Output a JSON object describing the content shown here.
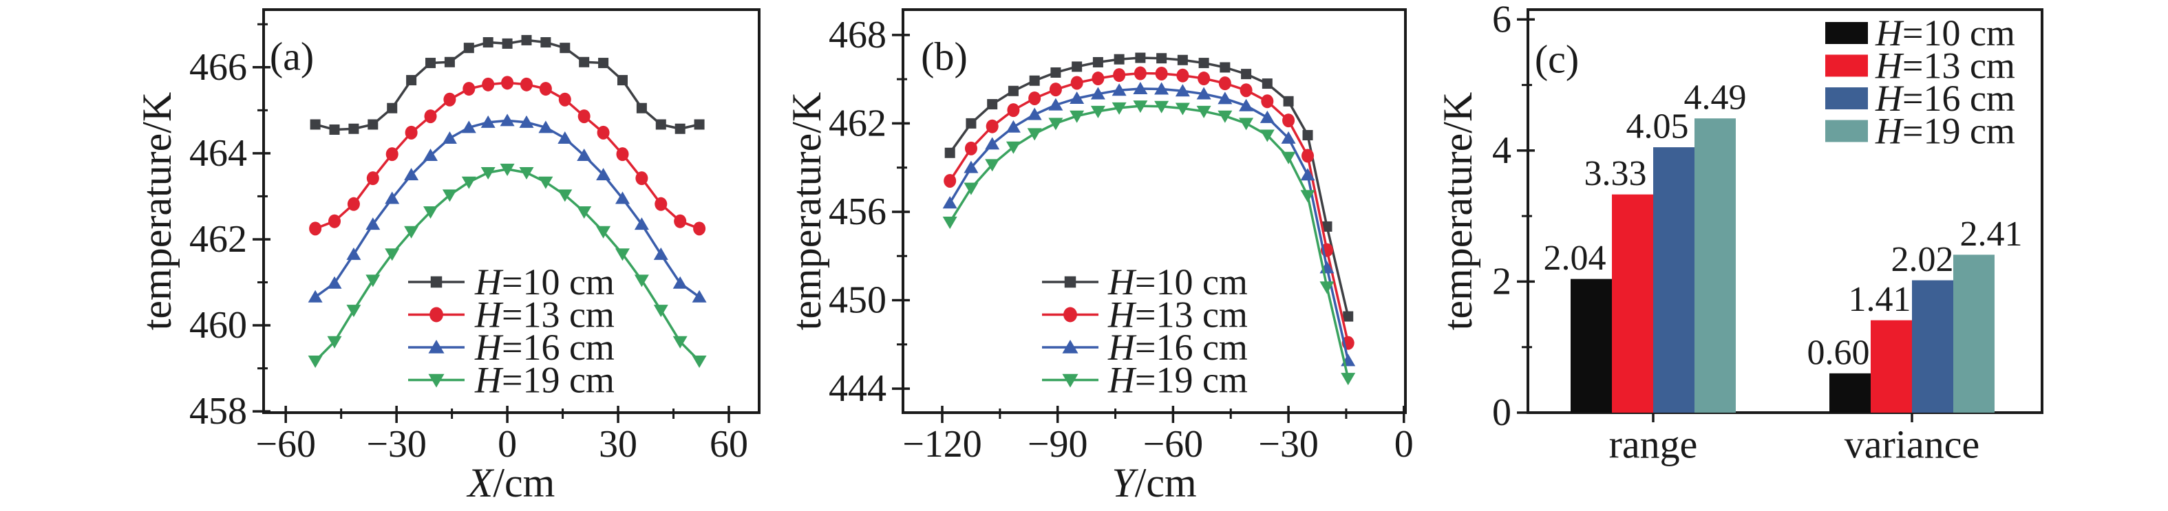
{
  "figure": {
    "background": "#ffffff",
    "text_color": "#1a1a1a",
    "spine_color": "#1a1a1a"
  },
  "chart_data": [
    {
      "type": "line",
      "panel_label": "(a)",
      "xlabel": "X/cm",
      "ylabel": "temperature/K",
      "xlim": [
        -66,
        68.2
      ],
      "ylim": [
        457.97,
        467.34
      ],
      "xticks": [
        -60,
        -30,
        0,
        30,
        60
      ],
      "xminorticks": [
        -45,
        -15,
        15,
        45
      ],
      "yticks": [
        458,
        460,
        462,
        464,
        466
      ],
      "yminorticks": [
        459,
        461,
        463,
        465,
        467
      ],
      "grid": false,
      "legend_position": "lower-center-inside",
      "x": [
        -52,
        -46.8,
        -41.6,
        -36.4,
        -31.2,
        -26,
        -20.8,
        -15.6,
        -10.4,
        -5.2,
        0,
        5.2,
        10.4,
        15.6,
        20.8,
        26,
        31.2,
        36.4,
        41.6,
        46.8,
        52
      ],
      "series": [
        {
          "name": "H=10 cm",
          "color": "#3e4044",
          "marker": "square",
          "values": [
            464.67,
            464.55,
            464.57,
            464.67,
            465.05,
            465.7,
            466.1,
            466.12,
            466.45,
            466.58,
            466.55,
            466.63,
            466.58,
            466.45,
            466.12,
            466.1,
            465.7,
            465.05,
            464.67,
            464.57,
            464.67
          ]
        },
        {
          "name": "H=13 cm",
          "color": "#e02332",
          "marker": "circle",
          "values": [
            462.25,
            462.42,
            462.82,
            463.42,
            463.98,
            464.48,
            464.86,
            465.25,
            465.5,
            465.6,
            465.64,
            465.6,
            465.5,
            465.25,
            464.86,
            464.48,
            463.98,
            463.42,
            462.82,
            462.42,
            462.25
          ]
        },
        {
          "name": "H=16 cm",
          "color": "#3a5dab",
          "marker": "triangle-up",
          "values": [
            460.66,
            460.98,
            461.65,
            462.35,
            462.95,
            463.5,
            463.95,
            464.35,
            464.6,
            464.72,
            464.76,
            464.72,
            464.6,
            464.35,
            463.95,
            463.5,
            462.95,
            462.35,
            461.65,
            460.98,
            460.66
          ]
        },
        {
          "name": "H=19 cm",
          "color": "#3aa35f",
          "marker": "triangle-down",
          "values": [
            459.17,
            459.62,
            460.35,
            461.05,
            461.66,
            462.18,
            462.64,
            463.03,
            463.33,
            463.55,
            463.63,
            463.55,
            463.33,
            463.03,
            462.64,
            462.18,
            461.66,
            461.05,
            460.35,
            459.62,
            459.17
          ]
        }
      ]
    },
    {
      "type": "line",
      "panel_label": "(b)",
      "xlabel": "Y/cm",
      "ylabel": "temperature/K",
      "xlim": [
        -130.2,
        0.4
      ],
      "ylim": [
        442.37,
        469.72
      ],
      "xticks": [
        -120,
        -90,
        -60,
        -30,
        0
      ],
      "xminorticks": [
        -105,
        -75,
        -45,
        -15
      ],
      "yticks": [
        444,
        450,
        456,
        462,
        468
      ],
      "yminorticks": [
        447,
        453,
        459,
        465
      ],
      "grid": false,
      "legend_position": "lower-center-inside",
      "x": [
        -118,
        -112.5,
        -107,
        -101.5,
        -96,
        -90.5,
        -85,
        -79.5,
        -74,
        -68.5,
        -63,
        -57.5,
        -52,
        -46.5,
        -41,
        -35.5,
        -30,
        -25,
        -20,
        -14.5
      ],
      "series": [
        {
          "name": "H=10 cm",
          "color": "#3e4044",
          "marker": "square",
          "values": [
            460.0,
            462.0,
            463.3,
            464.2,
            464.9,
            465.45,
            465.85,
            466.15,
            466.35,
            466.45,
            466.42,
            466.3,
            466.1,
            465.8,
            465.35,
            464.7,
            463.5,
            461.2,
            455.0,
            448.9
          ]
        },
        {
          "name": "H=13 cm",
          "color": "#e02332",
          "marker": "circle",
          "values": [
            458.1,
            460.3,
            461.8,
            462.9,
            463.7,
            464.3,
            464.75,
            465.05,
            465.28,
            465.4,
            465.38,
            465.25,
            465.05,
            464.72,
            464.25,
            463.5,
            462.2,
            459.8,
            453.4,
            447.1
          ]
        },
        {
          "name": "H=16 cm",
          "color": "#3a5dab",
          "marker": "triangle-up",
          "values": [
            456.6,
            459.0,
            460.6,
            461.75,
            462.6,
            463.25,
            463.7,
            464.0,
            464.25,
            464.35,
            464.33,
            464.2,
            464.0,
            463.68,
            463.2,
            462.4,
            461.0,
            458.5,
            452.2,
            445.9
          ]
        },
        {
          "name": "H=19 cm",
          "color": "#3aa35f",
          "marker": "triangle-down",
          "values": [
            455.3,
            457.6,
            459.2,
            460.4,
            461.3,
            462.0,
            462.5,
            462.82,
            463.05,
            463.18,
            463.15,
            463.02,
            462.82,
            462.5,
            462.0,
            461.2,
            459.7,
            457.1,
            450.9,
            444.7
          ]
        }
      ]
    },
    {
      "type": "bar",
      "panel_label": "(c)",
      "xlabel": "",
      "ylabel": "temperature/K",
      "ylim": [
        0,
        6.15
      ],
      "yticks": [
        0,
        2,
        4,
        6
      ],
      "yminorticks": [
        1,
        3,
        5
      ],
      "grid": false,
      "legend_position": "upper-right-inside",
      "categories": [
        "range",
        "variance"
      ],
      "series": [
        {
          "name": "H=10 cm",
          "color": "#0d0d0d",
          "values": [
            2.04,
            0.6
          ],
          "labels": [
            "2.04",
            "0.60"
          ]
        },
        {
          "name": "H=13 cm",
          "color": "#ec1c2b",
          "values": [
            3.33,
            1.41
          ],
          "labels": [
            "3.33",
            "1.41"
          ]
        },
        {
          "name": "H=16 cm",
          "color": "#3d6094",
          "values": [
            4.05,
            2.02
          ],
          "labels": [
            "4.05",
            "2.02"
          ]
        },
        {
          "name": "H=19 cm",
          "color": "#6ba09d",
          "values": [
            4.49,
            2.41
          ],
          "labels": [
            "4.49",
            "2.41"
          ]
        }
      ]
    }
  ]
}
